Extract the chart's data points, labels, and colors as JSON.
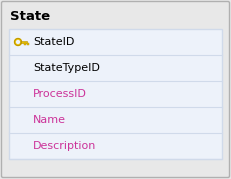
{
  "title": "State",
  "columns": [
    "StateID",
    "StateTypeID",
    "ProcessID",
    "Name",
    "Description"
  ],
  "primary_key_col": "StateID",
  "pink_cols": [
    "ProcessID",
    "Name",
    "Description"
  ],
  "bg_color": "#e8e8e8",
  "outer_border_color": "#b0b0b0",
  "table_bg": "#ffffff",
  "row_tint_bg": "#edf2fa",
  "row_line_color": "#d0daea",
  "title_color": "#000000",
  "title_fontsize": 9.5,
  "col_normal_color": "#000000",
  "col_pink_color": "#cc3399",
  "col_fontsize": 8.0,
  "key_color": "#e8c000",
  "figsize": [
    2.31,
    1.79
  ],
  "dpi": 100
}
